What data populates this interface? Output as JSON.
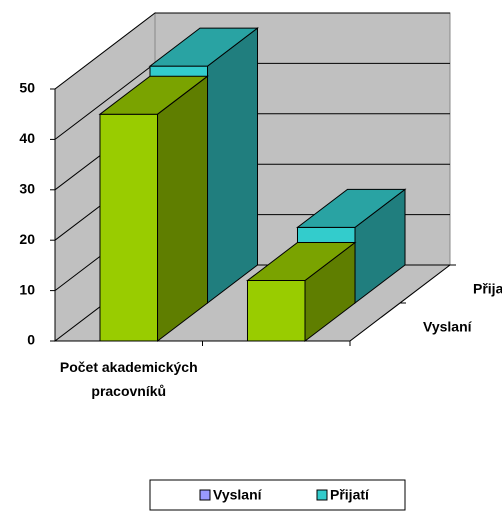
{
  "chart_data": {
    "type": "bar3d",
    "categories": [
      "Počet akademických pracovníků",
      null
    ],
    "series": [
      {
        "name": "Vyslaní",
        "color": "#99cc00",
        "legend_color": "#9999ff",
        "values": [
          45,
          12
        ]
      },
      {
        "name": "Přijatí",
        "color": "#33cccc",
        "legend_color": "#33cccc",
        "values": [
          47,
          15
        ]
      }
    ],
    "ylim": [
      0,
      50
    ],
    "yticks": [
      0,
      10,
      20,
      30,
      40,
      50
    ],
    "grid": true
  }
}
